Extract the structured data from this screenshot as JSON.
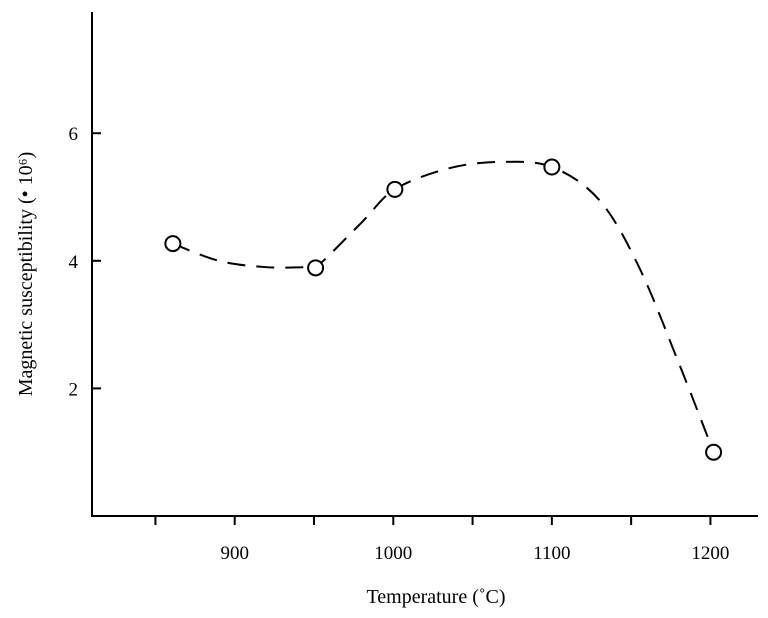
{
  "chart_data": {
    "type": "line",
    "title": "",
    "xlabel": "Temperature (˚C)",
    "ylabel": "Magnetic susceptibility (• 10⁶)",
    "xlim": [
      810,
      1230
    ],
    "ylim": [
      0,
      7.9
    ],
    "x_ticks": [
      850,
      900,
      950,
      1000,
      1050,
      1100,
      1150,
      1200
    ],
    "x_tick_labels": [
      {
        "value": 900,
        "label": "900"
      },
      {
        "value": 1000,
        "label": "1000"
      },
      {
        "value": 1100,
        "label": "1100"
      },
      {
        "value": 1200,
        "label": "1200"
      }
    ],
    "y_ticks": [
      {
        "value": 2,
        "label": "2"
      },
      {
        "value": 4,
        "label": "4"
      },
      {
        "value": 6,
        "label": "6"
      }
    ],
    "grid": false,
    "line_style": "dashed",
    "marker": "open-circle",
    "series": [
      {
        "points": [
          {
            "x": 861,
            "y": 4.27
          },
          {
            "x": 951,
            "y": 3.89
          },
          {
            "x": 1001,
            "y": 5.12
          },
          {
            "x": 1100,
            "y": 5.47
          },
          {
            "x": 1202,
            "y": 1.0
          }
        ],
        "trend_curve": [
          {
            "x": 861,
            "y": 4.27
          },
          {
            "x": 890,
            "y": 4.0
          },
          {
            "x": 920,
            "y": 3.9
          },
          {
            "x": 945,
            "y": 3.9
          },
          {
            "x": 951,
            "y": 3.89
          },
          {
            "x": 980,
            "y": 4.6
          },
          {
            "x": 1001,
            "y": 5.12
          },
          {
            "x": 1035,
            "y": 5.45
          },
          {
            "x": 1068,
            "y": 5.55
          },
          {
            "x": 1100,
            "y": 5.47
          },
          {
            "x": 1130,
            "y": 4.95
          },
          {
            "x": 1155,
            "y": 3.9
          },
          {
            "x": 1180,
            "y": 2.4
          },
          {
            "x": 1202,
            "y": 1.0
          }
        ]
      }
    ]
  }
}
